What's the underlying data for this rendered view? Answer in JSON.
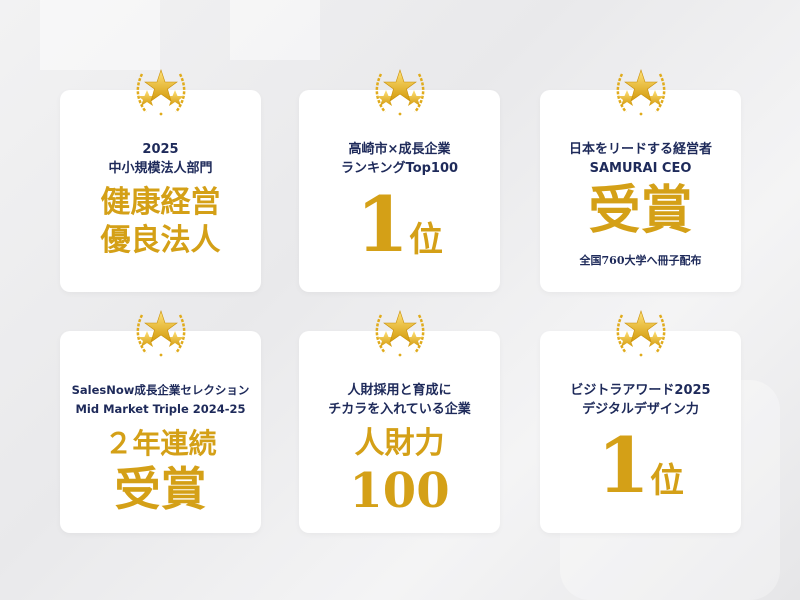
{
  "colors": {
    "navy": "#1e2a5a",
    "gold": "#d4a017",
    "card": "#ffffff"
  },
  "emblem_icon": "laurel-stars-icon",
  "awards": [
    {
      "lines": [
        "2025",
        "中小規模法人部門"
      ],
      "highlight": [
        "健康経営",
        "優良法人"
      ]
    },
    {
      "lines": [
        "高崎市×成長企業",
        "ランキングTop100"
      ],
      "highlight_big": "1",
      "highlight_small": "位"
    },
    {
      "lines": [
        "日本をリードする経営者",
        "SAMURAI CEO"
      ],
      "highlight": [
        "受賞"
      ],
      "sub": "全国760大学へ冊子配布"
    },
    {
      "lines": [
        "SalesNow成長企業セレクション",
        "Mid Market Triple 2024-25"
      ],
      "highlight": [
        "２年連続",
        "受賞"
      ]
    },
    {
      "lines": [
        "人財採用と育成に",
        "チカラを入れている企業"
      ],
      "highlight": [
        "人財力",
        "100"
      ]
    },
    {
      "lines": [
        "ビジトラアワード2025",
        "デジタルデザイン力"
      ],
      "highlight_big": "1",
      "highlight_small": "位"
    }
  ]
}
